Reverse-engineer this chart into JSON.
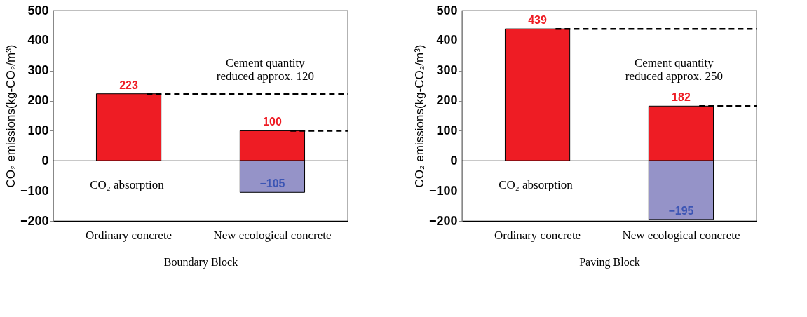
{
  "chart_data": [
    {
      "type": "bar",
      "stacked": true,
      "xlabel": "Boundary Block",
      "ylabel": "CO₂ emissions(kg-CO₂/m³)",
      "categories": [
        "Ordinary concrete",
        "New ecological concrete"
      ],
      "series": [
        {
          "color": "#ee1c24",
          "values": [
            223,
            100
          ],
          "value_labels": [
            "223",
            "100"
          ]
        },
        {
          "color": "#9593c8",
          "values": [
            null,
            -105
          ],
          "value_labels": [
            null,
            "−105"
          ]
        }
      ],
      "ylim": [
        -200,
        500
      ],
      "yticks": [
        -200,
        -100,
        0,
        100,
        200,
        300,
        400,
        500
      ],
      "legend": false,
      "ref_lines": [
        {
          "axis": "y",
          "value": 223,
          "color": "#000000",
          "line_style": "dashed"
        },
        {
          "axis": "y",
          "value": 100,
          "color": "#000000",
          "line_style": "dashed"
        }
      ],
      "annotations": [
        "Cement quantity\nreduced approx. 120",
        "CO₂ absorption"
      ]
    },
    {
      "type": "bar",
      "stacked": true,
      "xlabel": "Paving Block",
      "ylabel": "CO₂ emissions(kg-CO₂/m³)",
      "categories": [
        "Ordinary concrete",
        "New ecological concrete"
      ],
      "series": [
        {
          "color": "#ee1c24",
          "values": [
            439,
            182
          ],
          "value_labels": [
            "439",
            "182"
          ]
        },
        {
          "color": "#9593c8",
          "values": [
            null,
            -195
          ],
          "value_labels": [
            null,
            "−195"
          ]
        }
      ],
      "ylim": [
        -200,
        500
      ],
      "yticks": [
        -200,
        -100,
        0,
        100,
        200,
        300,
        400,
        500
      ],
      "legend": false,
      "ref_lines": [
        {
          "axis": "y",
          "value": 439,
          "color": "#000000",
          "line_style": "dashed"
        },
        {
          "axis": "y",
          "value": 182,
          "color": "#000000",
          "line_style": "dashed"
        }
      ],
      "annotations": [
        "Cement quantity\nreduced approx. 250",
        "CO₂ absorption"
      ]
    }
  ]
}
